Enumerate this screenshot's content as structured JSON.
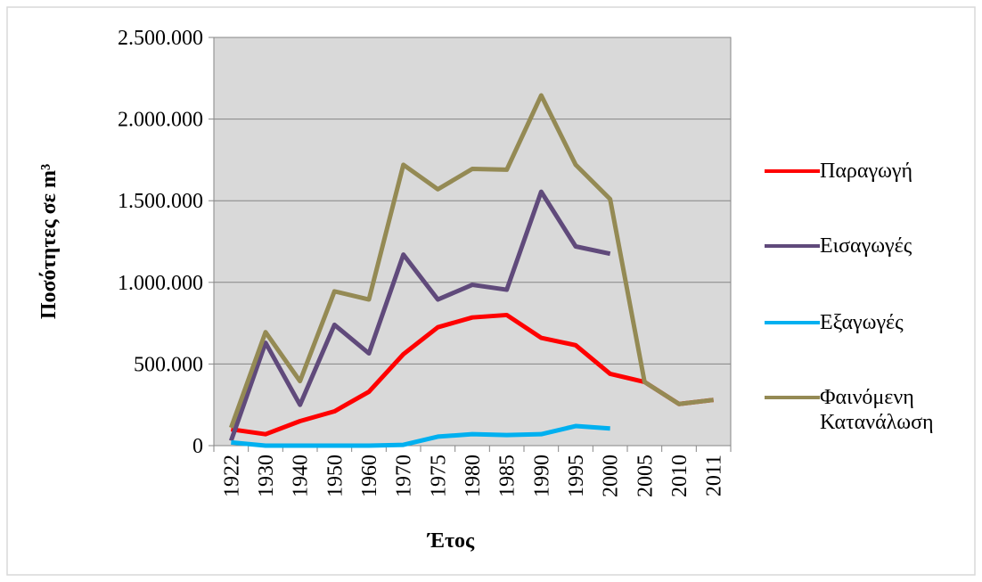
{
  "chart_data": {
    "type": "line",
    "x_label": "Έτος",
    "y_label": "Ποσότητες σε m³",
    "categories": [
      "1922",
      "1930",
      "1940",
      "1950",
      "1960",
      "1970",
      "1975",
      "1980",
      "1985",
      "1990",
      "1995",
      "2000",
      "2005",
      "2010",
      "2011"
    ],
    "series": [
      {
        "name": "Παραγωγή",
        "color": "#ff0000",
        "values": [
          100000,
          70000,
          150000,
          210000,
          330000,
          560000,
          725000,
          785000,
          800000,
          660000,
          615000,
          440000,
          390000,
          255000,
          280000
        ]
      },
      {
        "name": "Εισαγωγές",
        "color": "#604a7b",
        "values": [
          30000,
          630000,
          250000,
          740000,
          565000,
          1170000,
          895000,
          985000,
          955000,
          1555000,
          1220000,
          1175000,
          null,
          null,
          null
        ]
      },
      {
        "name": "Εξαγωγές",
        "color": "#00b0f0",
        "values": [
          20000,
          0,
          0,
          0,
          0,
          5000,
          55000,
          70000,
          65000,
          70000,
          120000,
          105000,
          null,
          null,
          null
        ]
      },
      {
        "name": "Φαινόμενη Κατανάλωση",
        "color": "#948a54",
        "values": [
          110000,
          695000,
          395000,
          945000,
          895000,
          1720000,
          1570000,
          1695000,
          1690000,
          2145000,
          1720000,
          1510000,
          390000,
          255000,
          280000
        ]
      }
    ],
    "ylim": [
      0,
      2500000
    ],
    "yticks": [
      0,
      {
        "value": 500000,
        "label": "500.000"
      },
      {
        "value": 1000000,
        "label": "1.000.000"
      },
      {
        "value": 1500000,
        "label": "1.500.000"
      },
      {
        "value": 2000000,
        "label": "2.000.000"
      },
      {
        "value": 2500000,
        "label": "2.500.000"
      }
    ],
    "grid": true
  }
}
